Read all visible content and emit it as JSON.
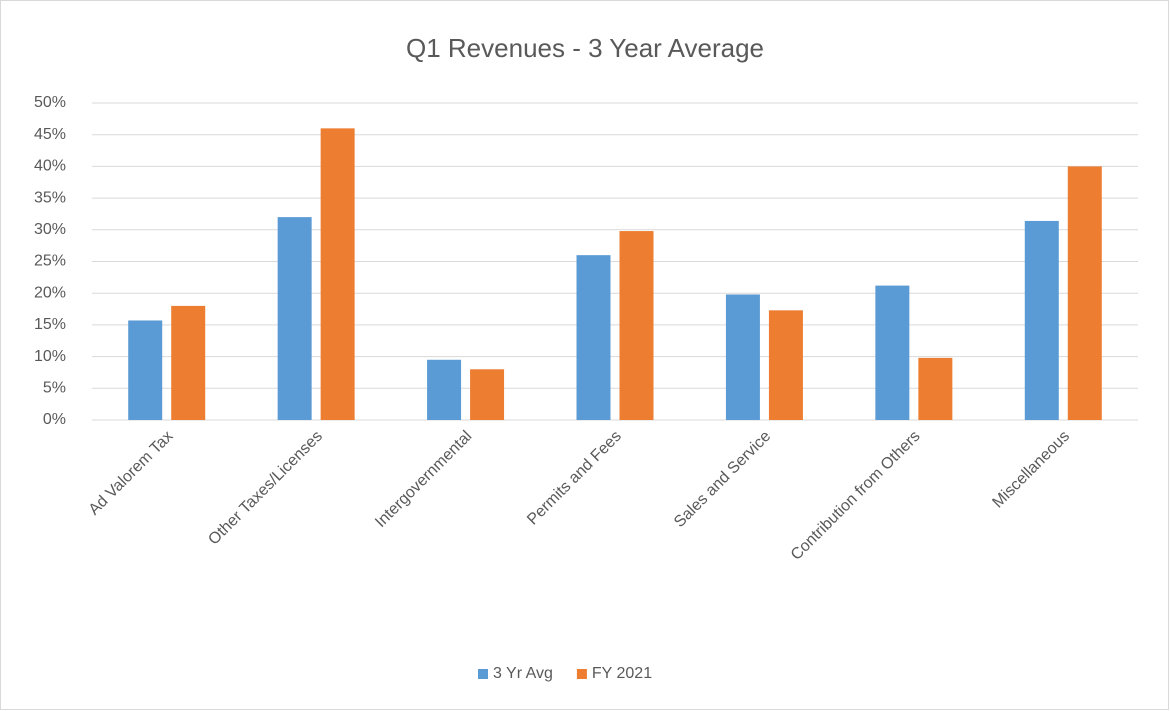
{
  "chart_data": {
    "type": "bar",
    "title": "Q1 Revenues - 3 Year Average",
    "categories": [
      "Ad Valorem Tax",
      "Other Taxes/Licenses",
      "Intergovernmental",
      "Permits and Fees",
      "Sales and Service",
      "Contribution from Others",
      "Miscellaneous"
    ],
    "series": [
      {
        "name": "3 Yr Avg",
        "color": "#5b9bd5",
        "values": [
          15.7,
          32,
          9.5,
          26,
          19.8,
          21.2,
          31.4
        ]
      },
      {
        "name": "FY 2021",
        "color": "#ed7d31",
        "values": [
          18,
          46,
          8,
          29.8,
          17.3,
          9.8,
          40
        ]
      }
    ],
    "ylim": [
      0,
      50
    ],
    "yticks": [
      {
        "value": 0,
        "label": "0%"
      },
      {
        "value": 5,
        "label": "5%"
      },
      {
        "value": 10,
        "label": "10%"
      },
      {
        "value": 15,
        "label": "15%"
      },
      {
        "value": 20,
        "label": "20%"
      },
      {
        "value": 25,
        "label": "25%"
      },
      {
        "value": 30,
        "label": "30%"
      },
      {
        "value": 35,
        "label": "35%"
      },
      {
        "value": 40,
        "label": "40%"
      },
      {
        "value": 45,
        "label": "45%"
      },
      {
        "value": 50,
        "label": "50%"
      }
    ],
    "grid": true,
    "legend": "bottom"
  }
}
